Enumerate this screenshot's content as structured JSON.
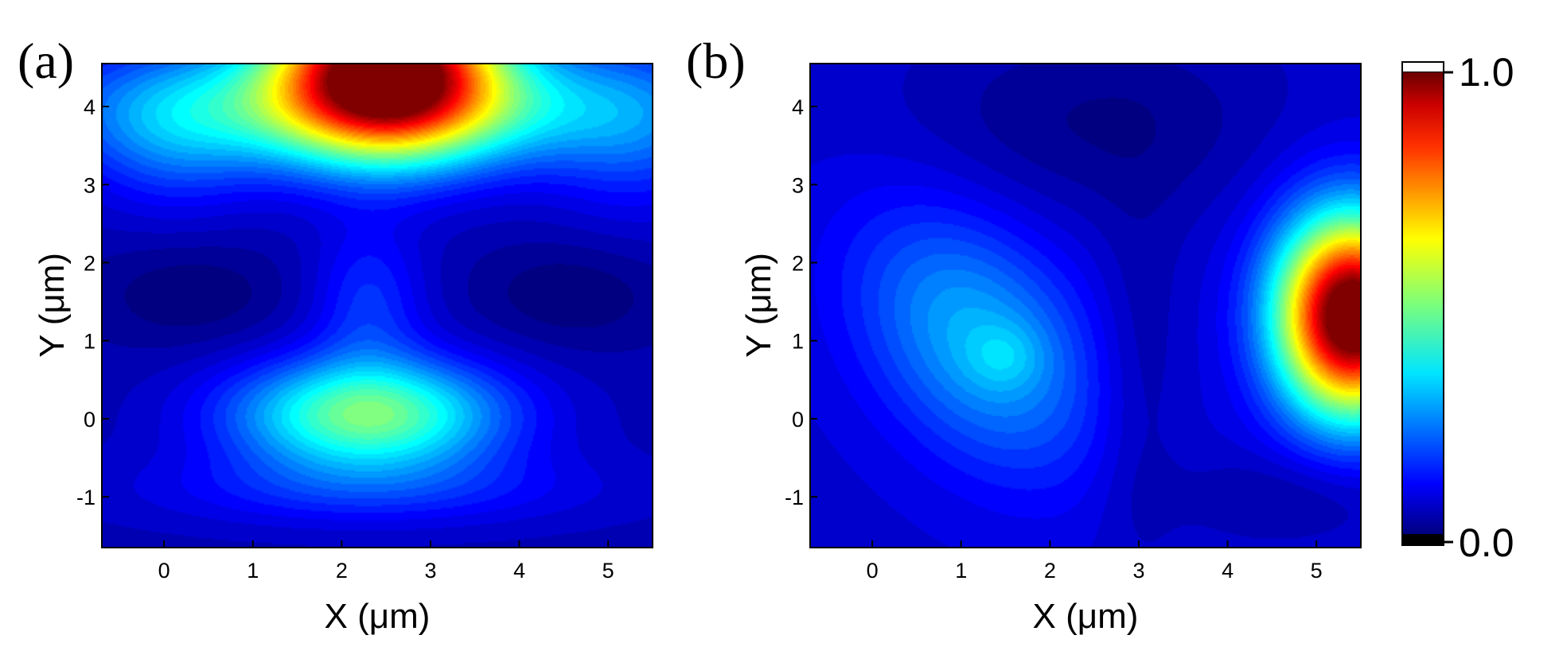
{
  "chart_data": [
    {
      "type": "heatmap",
      "panel_label": "(a)",
      "xlabel": "X (μm)",
      "ylabel": "Y (μm)",
      "xlim": [
        -0.7,
        5.5
      ],
      "ylim": [
        -1.65,
        4.55
      ],
      "xticks": [
        0,
        1,
        2,
        3,
        4,
        5
      ],
      "yticks": [
        -1,
        0,
        1,
        2,
        3,
        4
      ],
      "colormap": "jet",
      "value_range": [
        0.0,
        1.0
      ],
      "peaks": [
        {
          "x": 2.5,
          "y": 4.5,
          "value": 1.0
        },
        {
          "x": 2.3,
          "y": 0.1,
          "value": 0.48
        }
      ]
    },
    {
      "type": "heatmap",
      "panel_label": "(b)",
      "xlabel": "X (μm)",
      "ylabel": "Y (μm)",
      "xlim": [
        -0.7,
        5.5
      ],
      "ylim": [
        -1.65,
        4.55
      ],
      "xticks": [
        0,
        1,
        2,
        3,
        4,
        5
      ],
      "yticks": [
        -1,
        0,
        1,
        2,
        3,
        4
      ],
      "colormap": "jet",
      "value_range": [
        0.0,
        1.0
      ],
      "peaks": [
        {
          "x": 5.4,
          "y": 1.3,
          "value": 1.0
        },
        {
          "x": 1.5,
          "y": 0.8,
          "value": 0.32
        }
      ]
    }
  ],
  "colorbar": {
    "min_label": "0.0",
    "max_label": "1.0",
    "colormap": "jet"
  }
}
